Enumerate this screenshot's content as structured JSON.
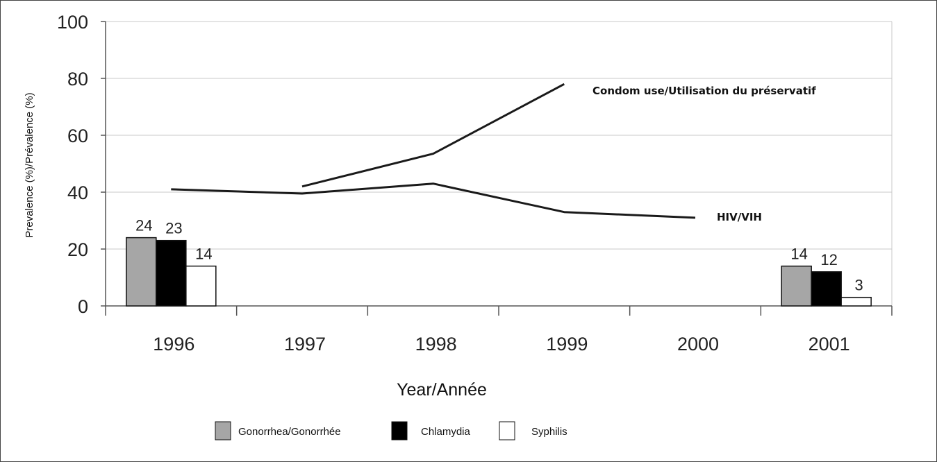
{
  "chart_data": {
    "type": "bar",
    "xlabel": "Year/Année",
    "ylabel": "Prevalence (%)/Prévalence (%)",
    "ylim": [
      0,
      100
    ],
    "yticks": [
      "0",
      "20",
      "40",
      "60",
      "80",
      "100"
    ],
    "categories": [
      "1996",
      "1997",
      "1998",
      "1999",
      "2000",
      "2001"
    ],
    "bar_series": [
      {
        "name": "Gonorrhea/Gonorrhée",
        "color": "#a6a6a6",
        "values": [
          24,
          null,
          null,
          null,
          null,
          14
        ],
        "labels": [
          "24",
          "",
          "",
          "",
          "",
          "14"
        ]
      },
      {
        "name": "Chlamydia",
        "color": "#000000",
        "values": [
          23,
          null,
          null,
          null,
          null,
          12
        ],
        "labels": [
          "23",
          "",
          "",
          "",
          "",
          "12"
        ]
      },
      {
        "name": "Syphilis",
        "color": "#ffffff",
        "values": [
          14,
          null,
          null,
          null,
          null,
          3
        ],
        "labels": [
          "14",
          "",
          "",
          "",
          "",
          "3"
        ]
      }
    ],
    "line_series": [
      {
        "name": "Condom use/Utilisation du préservatif",
        "values": [
          null,
          42,
          53.5,
          78,
          null,
          null
        ]
      },
      {
        "name": "HIV/VIH",
        "values": [
          41,
          39.5,
          43,
          33,
          31,
          null
        ]
      }
    ],
    "grid": true,
    "legend_position": "bottom"
  }
}
